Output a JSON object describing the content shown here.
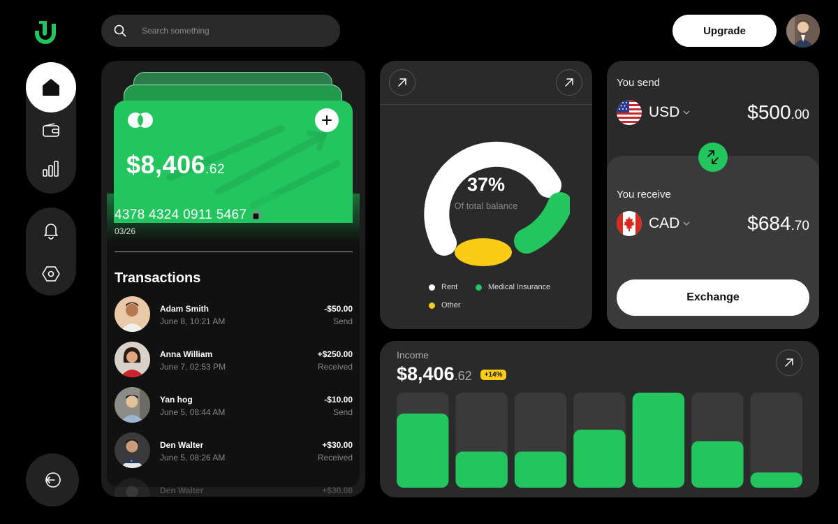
{
  "search": {
    "placeholder": "Search something"
  },
  "header": {
    "upgrade_label": "Upgrade"
  },
  "colors": {
    "accent": "#22c55e",
    "yellow": "#facc15",
    "panel": "#2a2a2a"
  },
  "card": {
    "amount_main": "$8,406",
    "amount_cents": ".62",
    "number": "4378 4324 0911 5467",
    "expiry": "03/26"
  },
  "transactions": {
    "title": "Transactions",
    "items": [
      {
        "name": "Adam Smith",
        "date": "June 8, 10:21 AM",
        "amount": "-$50.00",
        "type": "Send"
      },
      {
        "name": "Anna William",
        "date": "June 7, 02:53 PM",
        "amount": "+$250.00",
        "type": "Received"
      },
      {
        "name": "Yan hog",
        "date": "June 5, 08:44 AM",
        "amount": "-$10.00",
        "type": "Send"
      },
      {
        "name": "Den Walter",
        "date": "June 5, 08:26 AM",
        "amount": "+$30.00",
        "type": "Received"
      },
      {
        "name": "Den Walter",
        "date": "",
        "amount": "+$30.00",
        "type": ""
      }
    ]
  },
  "balance_chart": {
    "percent": "37%",
    "subtitle": "Of total balance",
    "legend": [
      {
        "label": "Rent",
        "color": "#ffffff"
      },
      {
        "label": "Medical Insurance",
        "color": "#22c55e"
      },
      {
        "label": "Other",
        "color": "#facc15"
      }
    ]
  },
  "exchange": {
    "send_label": "You send",
    "send_currency": "USD",
    "send_amount_main": "$500",
    "send_amount_cents": ".00",
    "receive_label": "You receive",
    "receive_currency": "CAD",
    "receive_amount_main": "$684",
    "receive_amount_cents": ".70",
    "button_label": "Exchange"
  },
  "income": {
    "label": "Income",
    "amount_main": "$8,406",
    "amount_cents": ".62",
    "badge": "+14%"
  },
  "chart_data": {
    "type": "bar",
    "series": [
      {
        "values": [
          78,
          38,
          38,
          61,
          100,
          49,
          16
        ]
      }
    ],
    "ylim": [
      0,
      100
    ],
    "grid": false,
    "legend": "none"
  }
}
